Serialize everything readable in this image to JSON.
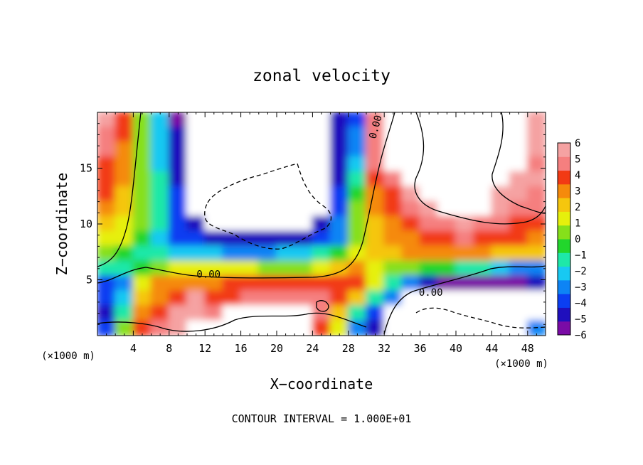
{
  "chart_data": {
    "type": "heatmap",
    "title": "zonal velocity",
    "xlabel": "X−coordinate",
    "ylabel": "Z−coordinate",
    "x_unit_left": "(×1000 m)",
    "x_unit_right": "(×1000 m)",
    "footer": "CONTOUR INTERVAL = 1.000E+01",
    "xlim": [
      0,
      50
    ],
    "ylim": [
      0,
      20
    ],
    "x_ticks": [
      {
        "value": 4,
        "label": "4"
      },
      {
        "value": 8,
        "label": "8"
      },
      {
        "value": 12,
        "label": "12"
      },
      {
        "value": 16,
        "label": "16"
      },
      {
        "value": 20,
        "label": "20"
      },
      {
        "value": 24,
        "label": "24"
      },
      {
        "value": 28,
        "label": "28"
      },
      {
        "value": 32,
        "label": "32"
      },
      {
        "value": 36,
        "label": "36"
      },
      {
        "value": 40,
        "label": "40"
      },
      {
        "value": 44,
        "label": "44"
      },
      {
        "value": 48,
        "label": "48"
      }
    ],
    "y_ticks": [
      {
        "value": 5,
        "label": "5"
      },
      {
        "value": 10,
        "label": "10"
      },
      {
        "value": 15,
        "label": "15"
      }
    ],
    "colorbar": {
      "min": -6,
      "max": 6,
      "ticks": [
        {
          "value": 6,
          "label": "6"
        },
        {
          "value": 5,
          "label": "5"
        },
        {
          "value": 4,
          "label": "4"
        },
        {
          "value": 3,
          "label": "3"
        },
        {
          "value": 2,
          "label": "2"
        },
        {
          "value": 1,
          "label": "1"
        },
        {
          "value": 0,
          "label": "0"
        },
        {
          "value": -1,
          "label": "−1"
        },
        {
          "value": -2,
          "label": "−2"
        },
        {
          "value": -3,
          "label": "−3"
        },
        {
          "value": -4,
          "label": "−4"
        },
        {
          "value": -5,
          "label": "−5"
        },
        {
          "value": -6,
          "label": "−6"
        }
      ],
      "colors": [
        "#7a0ba6",
        "#1f0fbd",
        "#0b3ef2",
        "#0d84f5",
        "#18c9f2",
        "#1ee8a8",
        "#22d62c",
        "#86e01a",
        "#e6f00c",
        "#f5c60e",
        "#f58a0c",
        "#f23a14",
        "#f57f7f",
        "#f5a2a2"
      ]
    },
    "contour_labels": [
      {
        "text": "0.00",
        "x": 12.4,
        "z": 5.5
      },
      {
        "text": "0.00",
        "x": 31.0,
        "z": 18.7
      },
      {
        "text": "0.00",
        "x": 37.2,
        "z": 3.9
      }
    ],
    "field": [
      [
        5.2,
        4.0,
        0.8,
        -2.5,
        -5.5,
        99,
        99,
        99,
        99,
        99,
        99,
        99,
        99,
        -5.0,
        -3.8,
        4.6,
        99,
        99,
        99,
        99,
        99,
        99,
        99,
        99,
        5.8
      ],
      [
        4.8,
        3.6,
        0.6,
        -2.2,
        -5.0,
        99,
        99,
        99,
        99,
        99,
        99,
        99,
        99,
        -4.8,
        -3.2,
        4.8,
        99,
        99,
        99,
        99,
        99,
        99,
        99,
        99,
        5.5
      ],
      [
        4.5,
        3.3,
        0.5,
        -2.0,
        -4.8,
        99,
        99,
        99,
        99,
        99,
        99,
        99,
        99,
        -4.6,
        -2.6,
        4.9,
        99,
        99,
        99,
        99,
        99,
        99,
        99,
        99,
        5.3
      ],
      [
        4.2,
        3.0,
        0.5,
        -1.8,
        -4.6,
        99,
        99,
        99,
        99,
        99,
        99,
        99,
        99,
        -4.4,
        -2.0,
        4.4,
        99,
        99,
        99,
        99,
        99,
        99,
        99,
        99,
        5.0
      ],
      [
        3.8,
        2.8,
        0.4,
        -1.6,
        -4.4,
        99,
        99,
        99,
        99,
        99,
        99,
        99,
        99,
        -4.3,
        -1.2,
        3.9,
        4.9,
        99,
        99,
        99,
        99,
        99,
        99,
        5.6,
        5.3
      ],
      [
        3.5,
        2.4,
        0.3,
        -1.5,
        -4.2,
        99,
        99,
        99,
        99,
        99,
        99,
        99,
        99,
        -4.2,
        -0.5,
        3.4,
        4.2,
        5.5,
        99,
        99,
        99,
        99,
        5.5,
        5.2,
        5.0
      ],
      [
        3.0,
        2.0,
        0.2,
        -1.4,
        -4.0,
        99,
        99,
        99,
        99,
        99,
        99,
        99,
        99,
        -4.0,
        0.2,
        2.8,
        3.6,
        4.6,
        5.5,
        99,
        99,
        99,
        5.2,
        4.9,
        4.5
      ],
      [
        2.4,
        1.6,
        0.1,
        -1.5,
        -3.8,
        -4.6,
        99,
        99,
        99,
        99,
        99,
        99,
        -4.8,
        -3.2,
        0.6,
        2.3,
        3.0,
        3.8,
        4.4,
        4.9,
        5.2,
        5.0,
        4.6,
        4.2,
        3.9
      ],
      [
        1.6,
        0.9,
        -0.6,
        -2.5,
        -3.5,
        -4.2,
        -4.8,
        -5.0,
        -5.0,
        -5.0,
        -5.0,
        -4.8,
        -4.2,
        -2.8,
        0.8,
        2.0,
        2.6,
        3.2,
        3.7,
        4.0,
        4.3,
        4.2,
        3.8,
        3.6,
        3.4
      ],
      [
        0.2,
        -0.4,
        -1.2,
        -1.6,
        -1.9,
        -2.2,
        -2.4,
        -2.6,
        -2.8,
        -2.7,
        -2.4,
        -2.0,
        -1.5,
        -0.6,
        1.2,
        1.9,
        2.3,
        2.6,
        3.0,
        3.2,
        2.9,
        2.7,
        2.5,
        2.4,
        2.3
      ],
      [
        -1.2,
        -1.6,
        -0.6,
        0.8,
        1.4,
        1.2,
        1.0,
        1.2,
        0.9,
        0.6,
        0.4,
        0.8,
        1.4,
        2.2,
        2.8,
        1.4,
        0.8,
        0.4,
        -0.2,
        -0.6,
        -1.0,
        -1.6,
        -2.4,
        -3.0,
        -3.4
      ],
      [
        -3.5,
        -2.8,
        1.0,
        2.8,
        3.4,
        3.2,
        3.4,
        3.9,
        4.2,
        4.0,
        3.8,
        3.6,
        3.8,
        4.0,
        3.6,
        1.5,
        -1.6,
        -3.2,
        -4.4,
        -5.2,
        -5.6,
        -5.6,
        -5.4,
        -5.2,
        -5.0
      ],
      [
        -3.8,
        -2.2,
        1.8,
        3.4,
        4.2,
        5.2,
        4.0,
        3.8,
        4.4,
        4.8,
        4.6,
        4.4,
        4.6,
        3.6,
        1.8,
        -1.2,
        -3.0,
        99,
        99,
        99,
        99,
        99,
        99,
        99,
        99
      ],
      [
        -4.4,
        -1.0,
        2.8,
        4.2,
        5.8,
        5.8,
        4.6,
        99,
        99,
        99,
        99,
        99,
        4.6,
        2.2,
        -1.4,
        -3.8,
        99,
        99,
        99,
        99,
        99,
        99,
        99,
        99,
        99
      ],
      [
        -3.6,
        0.4,
        3.6,
        4.6,
        5.6,
        99,
        99,
        99,
        99,
        99,
        99,
        99,
        4.2,
        1.4,
        -2.6,
        -4.4,
        99,
        99,
        99,
        99,
        99,
        99,
        99,
        99,
        -3.0
      ]
    ]
  }
}
